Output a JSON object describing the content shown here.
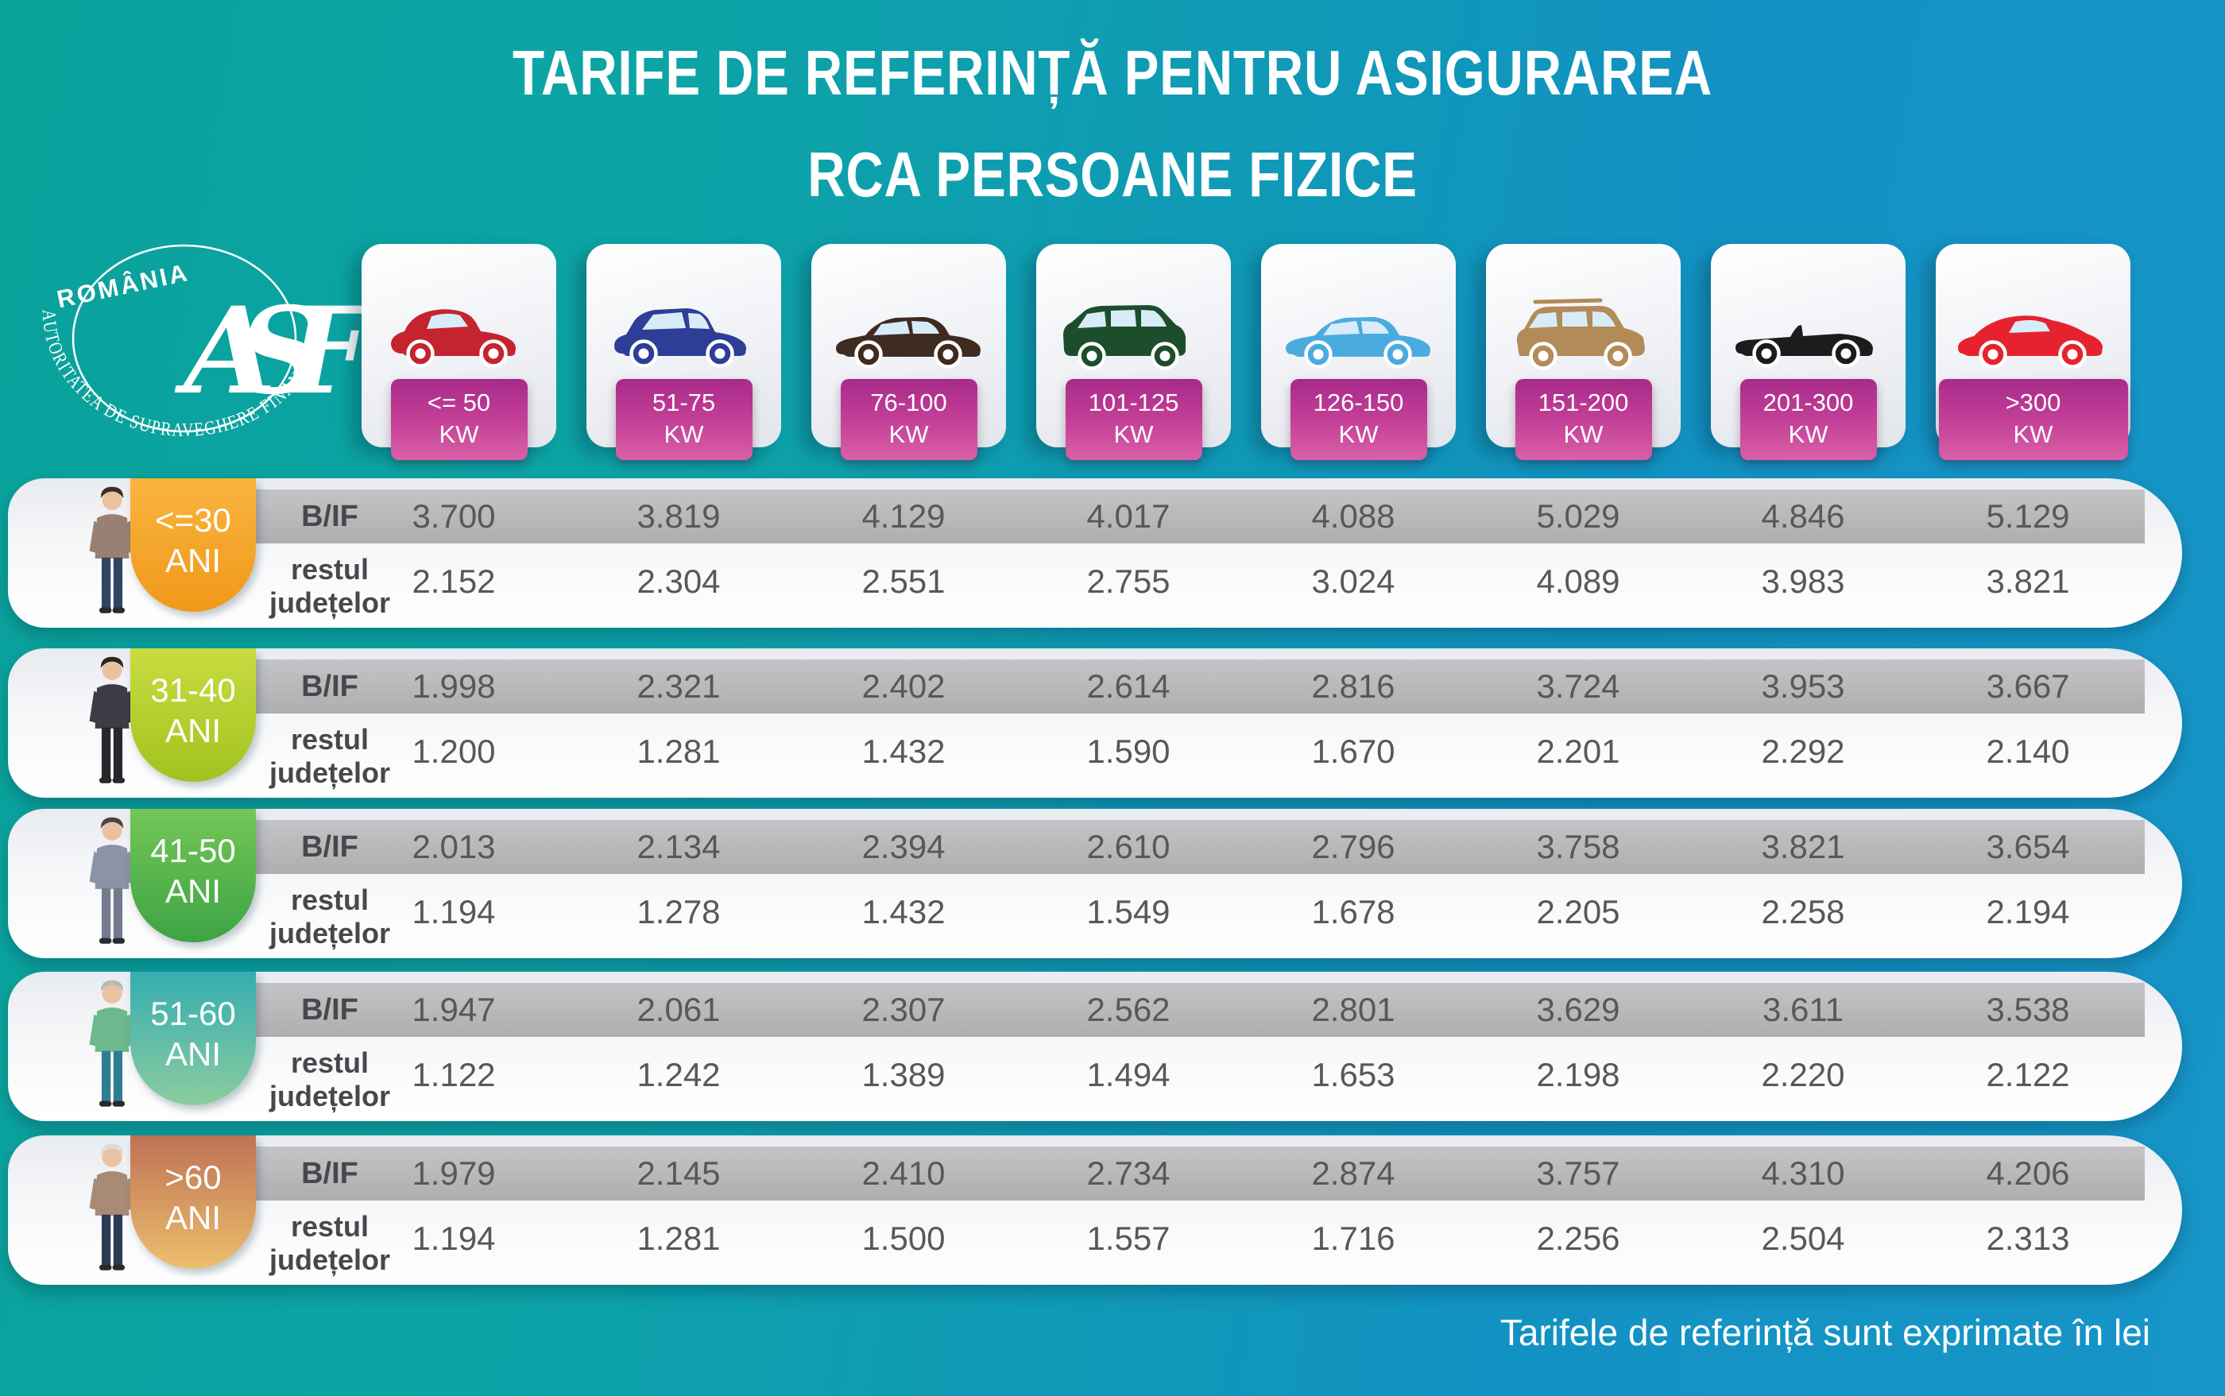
{
  "title": {
    "line1": "TARIFE DE REFERINȚĂ PENTRU ASIGURAREA",
    "line2": "RCA PERSOANE FIZICE"
  },
  "logo": {
    "country": "ROMÂNIA",
    "monogram": "ASF",
    "org": "AUTORITATEA DE SUPRAVEGHERE FINANCIARĂ"
  },
  "footer": {
    "note": "Tarifele de referință sunt exprimate în lei"
  },
  "badge_colors": {
    "top": "#a82a8a",
    "bottom": "#d960a6"
  },
  "background_colors": {
    "left_teal": "#0aa29a",
    "right_blue": "#1795c8"
  },
  "columns": [
    {
      "label": "<= 50",
      "unit": "KW",
      "icon": "city-car-icon",
      "color": "#c5232e"
    },
    {
      "label": "51-75",
      "unit": "KW",
      "icon": "crossover-icon",
      "color": "#2e3e97"
    },
    {
      "label": "76-100",
      "unit": "KW",
      "icon": "sedan-icon",
      "color": "#3f2b20"
    },
    {
      "label": "101-125",
      "unit": "KW",
      "icon": "minivan-icon",
      "color": "#1d4e2c"
    },
    {
      "label": "126-150",
      "unit": "KW",
      "icon": "sedan-icon",
      "color": "#4aabdf"
    },
    {
      "label": "151-200",
      "unit": "KW",
      "icon": "suv-icon",
      "color": "#b38b58"
    },
    {
      "label": "201-300",
      "unit": "KW",
      "icon": "convertible-icon",
      "color": "#1c1c1c"
    },
    {
      "label": ">300",
      "unit": "KW",
      "icon": "sports-car-icon",
      "color": "#e6222e"
    }
  ],
  "row_labels": {
    "bif": "B/IF",
    "rest_line1": "restul",
    "rest_line2": "județelor"
  },
  "age_groups": [
    {
      "age_line1": "<=30",
      "age_line2": "ANI",
      "tab_colors": [
        "#f9b43f",
        "#f0991a"
      ],
      "person": {
        "name": "young-man",
        "hair": "#3a2e25",
        "skin": "#eac2a1",
        "top": "#9a8072",
        "bottom": "#2f4560"
      },
      "bif": [
        "3.700",
        "3.819",
        "4.129",
        "4.017",
        "4.088",
        "5.029",
        "4.846",
        "5.129"
      ],
      "rest": [
        "2.152",
        "2.304",
        "2.551",
        "2.755",
        "3.024",
        "4.089",
        "3.983",
        "3.821"
      ]
    },
    {
      "age_line1": "31-40",
      "age_line2": "ANI",
      "tab_colors": [
        "#c8dc40",
        "#a3c21e"
      ],
      "person": {
        "name": "adult-man-suit",
        "hair": "#2b2622",
        "skin": "#eac2a1",
        "top": "#3c3c45",
        "bottom": "#27272f"
      },
      "bif": [
        "1.998",
        "2.321",
        "2.402",
        "2.614",
        "2.816",
        "3.724",
        "3.953",
        "3.667"
      ],
      "rest": [
        "1.200",
        "1.281",
        "1.432",
        "1.590",
        "1.670",
        "2.201",
        "2.292",
        "2.140"
      ]
    },
    {
      "age_line1": "41-50",
      "age_line2": "ANI",
      "tab_colors": [
        "#74c656",
        "#3da344"
      ],
      "person": {
        "name": "middle-aged-man",
        "hair": "#4a4542",
        "skin": "#eac2a1",
        "top": "#8d93a6",
        "bottom": "#747b8f"
      },
      "bif": [
        "2.013",
        "2.134",
        "2.394",
        "2.610",
        "2.796",
        "3.758",
        "3.821",
        "3.654"
      ],
      "rest": [
        "1.194",
        "1.278",
        "1.432",
        "1.549",
        "1.678",
        "2.205",
        "2.258",
        "2.194"
      ]
    },
    {
      "age_line1": "51-60",
      "age_line2": "ANI",
      "tab_colors": [
        "#35adb2",
        "#8bcc9e"
      ],
      "person": {
        "name": "senior-man-vest",
        "hair": "#b9b9b9",
        "skin": "#eac2a1",
        "top": "#6cb98e",
        "bottom": "#2f7d93"
      },
      "bif": [
        "1.947",
        "2.061",
        "2.307",
        "2.562",
        "2.801",
        "3.629",
        "3.611",
        "3.538"
      ],
      "rest": [
        "1.122",
        "1.242",
        "1.389",
        "1.494",
        "1.653",
        "2.198",
        "2.220",
        "2.122"
      ]
    },
    {
      "age_line1": ">60",
      "age_line2": "ANI",
      "tab_colors": [
        "#bf7254",
        "#ecbf6e"
      ],
      "person": {
        "name": "elderly-man",
        "hair": "#dcdcdc",
        "skin": "#eac2a1",
        "top": "#a98a74",
        "bottom": "#2e3a55"
      },
      "bif": [
        "1.979",
        "2.145",
        "2.410",
        "2.734",
        "2.874",
        "3.757",
        "4.310",
        "4.206"
      ],
      "rest": [
        "1.194",
        "1.281",
        "1.500",
        "1.557",
        "1.716",
        "2.256",
        "2.504",
        "2.313"
      ]
    }
  ],
  "chart_data": {
    "type": "table",
    "title": "TARIFE DE REFERINȚĂ PENTRU ASIGURAREA RCA PERSOANE FIZICE",
    "unit_note": "Tarifele de referință sunt exprimate în lei",
    "currency": "lei",
    "power_categories_kw": [
      "<= 50",
      "51-75",
      "76-100",
      "101-125",
      "126-150",
      "151-200",
      "201-300",
      ">300"
    ],
    "rows": [
      {
        "age_group": "<=30 ANI",
        "region": "B/IF",
        "values": [
          3700,
          3819,
          4129,
          4017,
          4088,
          5029,
          4846,
          5129
        ]
      },
      {
        "age_group": "<=30 ANI",
        "region": "restul județelor",
        "values": [
          2152,
          2304,
          2551,
          2755,
          3024,
          4089,
          3983,
          3821
        ]
      },
      {
        "age_group": "31-40 ANI",
        "region": "B/IF",
        "values": [
          1998,
          2321,
          2402,
          2614,
          2816,
          3724,
          3953,
          3667
        ]
      },
      {
        "age_group": "31-40 ANI",
        "region": "restul județelor",
        "values": [
          1200,
          1281,
          1432,
          1590,
          1670,
          2201,
          2292,
          2140
        ]
      },
      {
        "age_group": "41-50 ANI",
        "region": "B/IF",
        "values": [
          2013,
          2134,
          2394,
          2610,
          2796,
          3758,
          3821,
          3654
        ]
      },
      {
        "age_group": "41-50 ANI",
        "region": "restul județelor",
        "values": [
          1194,
          1278,
          1432,
          1549,
          1678,
          2205,
          2258,
          2194
        ]
      },
      {
        "age_group": "51-60 ANI",
        "region": "B/IF",
        "values": [
          1947,
          2061,
          2307,
          2562,
          2801,
          3629,
          3611,
          3538
        ]
      },
      {
        "age_group": "51-60 ANI",
        "region": "restul județelor",
        "values": [
          1122,
          1242,
          1389,
          1494,
          1653,
          2198,
          2220,
          2122
        ]
      },
      {
        "age_group": ">60 ANI",
        "region": "B/IF",
        "values": [
          1979,
          2145,
          2410,
          2734,
          2874,
          3757,
          4310,
          4206
        ]
      },
      {
        "age_group": ">60 ANI",
        "region": "restul județelor",
        "values": [
          1194,
          1281,
          1500,
          1557,
          1716,
          2256,
          2504,
          2313
        ]
      }
    ]
  }
}
